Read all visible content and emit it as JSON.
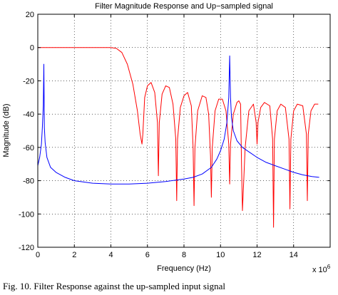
{
  "chart_data": {
    "type": "line",
    "title": "Filter Magnitude Response and Up−sampled signal",
    "xlabel": "Frequency (Hz)",
    "ylabel": "Magnitude (dB)",
    "x_multiplier": "x 10",
    "x_multiplier_exp": "6",
    "xlim": [
      0,
      16
    ],
    "ylim": [
      -120,
      20
    ],
    "xticks": [
      0,
      2,
      4,
      6,
      8,
      10,
      12,
      14
    ],
    "yticks": [
      20,
      0,
      -20,
      -40,
      -60,
      -80,
      -100,
      -120
    ],
    "grid": true,
    "series": [
      {
        "color": "#ff0000",
        "x": [
          0,
          1,
          2,
          3,
          3.5,
          4,
          4.3,
          4.6,
          4.9,
          5.2,
          5.45,
          5.6,
          5.7,
          5.75,
          5.85,
          6.0,
          6.2,
          6.4,
          6.55,
          6.6,
          6.65,
          6.8,
          7.0,
          7.2,
          7.4,
          7.55,
          7.6,
          7.65,
          7.8,
          8.0,
          8.2,
          8.4,
          8.5,
          8.55,
          8.6,
          8.75,
          9.0,
          9.2,
          9.35,
          9.45,
          9.5,
          9.55,
          9.7,
          9.9,
          10.1,
          10.3,
          10.45,
          10.5,
          10.55,
          10.7,
          10.9,
          11.0,
          11.1,
          11.15,
          11.2,
          11.35,
          11.55,
          11.8,
          11.95,
          12.0,
          12.05,
          12.2,
          12.4,
          12.7,
          12.85,
          12.9,
          12.95,
          13.1,
          13.3,
          13.55,
          13.75,
          13.8,
          13.85,
          14.0,
          14.2,
          14.5,
          14.7,
          14.75,
          14.8,
          14.95,
          15.15,
          15.35
        ],
        "values": [
          0,
          0,
          0,
          0,
          0,
          0,
          -0.5,
          -3,
          -10,
          -22,
          -38,
          -52,
          -58,
          -52,
          -30,
          -23,
          -21,
          -27,
          -45,
          -77,
          -45,
          -28,
          -23,
          -24,
          -34,
          -55,
          -92,
          -55,
          -36,
          -29,
          -27,
          -35,
          -60,
          -95,
          -60,
          -38,
          -29,
          -30,
          -40,
          -65,
          -90,
          -60,
          -38,
          -31,
          -31,
          -38,
          -58,
          -82,
          -58,
          -40,
          -33,
          -32,
          -34,
          -70,
          -98,
          -60,
          -38,
          -34,
          -45,
          -58,
          -45,
          -36,
          -33,
          -35,
          -55,
          -108,
          -55,
          -38,
          -34,
          -36,
          -55,
          -97,
          -55,
          -38,
          -34,
          -35,
          -52,
          -92,
          -52,
          -38,
          -34,
          -34
        ]
      },
      {
        "color": "#0000ff",
        "x": [
          0,
          0.1,
          0.2,
          0.25,
          0.3,
          0.33,
          0.36,
          0.4,
          0.5,
          0.7,
          1.0,
          1.5,
          2.0,
          3.0,
          4.0,
          5.0,
          6.0,
          7.0,
          8.0,
          8.5,
          9.0,
          9.5,
          9.8,
          10.0,
          10.2,
          10.35,
          10.45,
          10.5,
          10.55,
          10.6,
          10.7,
          10.9,
          11.2,
          11.6,
          12.0,
          12.5,
          13.0,
          13.5,
          14.0,
          14.5,
          15.0,
          15.4
        ],
        "values": [
          -71,
          -66,
          -58,
          -48,
          -35,
          -10,
          -48,
          -57,
          -66,
          -72,
          -75,
          -78,
          -80,
          -81.5,
          -82,
          -82,
          -81.5,
          -80.5,
          -79,
          -78,
          -76,
          -72,
          -67,
          -62,
          -55,
          -45,
          -30,
          -5,
          -30,
          -42,
          -50,
          -56,
          -60,
          -63,
          -66,
          -69,
          -71,
          -73,
          -75,
          -76.5,
          -77.5,
          -78
        ]
      }
    ]
  },
  "caption": "Fig. 10. Filter Response against the up-sampled input signal"
}
